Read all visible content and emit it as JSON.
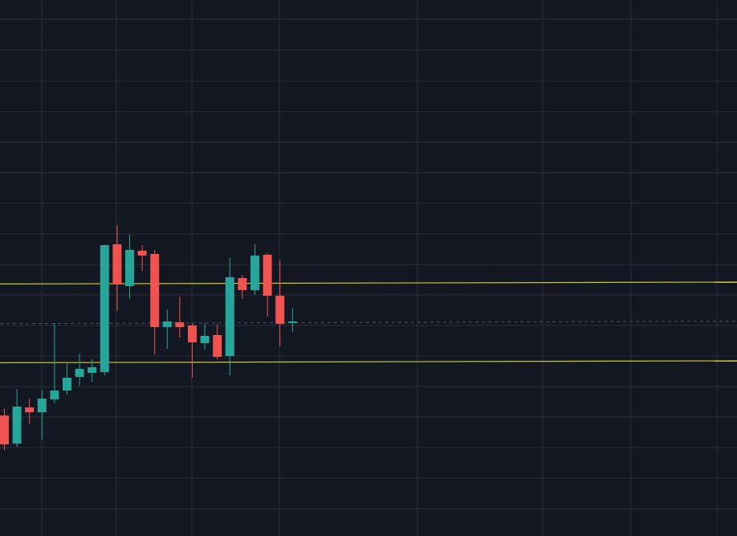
{
  "theme": {
    "background": "#131722",
    "grid": "#2a2e39",
    "up": "#26a69a",
    "down": "#ef5350",
    "level_line": "#c9c63a",
    "last_price_line": "#4a5060"
  },
  "chart_data": {
    "type": "candlestick",
    "title": "",
    "xlabel": "",
    "ylabel": "",
    "ylim": [
      0,
      667
    ],
    "xlim": [
      0,
      60
    ],
    "grid": true,
    "horizontal_levels": [
      {
        "value": 314.8,
        "style": "solid"
      },
      {
        "value": 216.8,
        "style": "solid"
      }
    ],
    "last_price": {
      "value": 265.8,
      "style": "dashed"
    },
    "candles": [
      {
        "i": 0,
        "o": 150,
        "h": 158,
        "l": 107,
        "c": 114
      },
      {
        "i": 1,
        "o": 115,
        "h": 183,
        "l": 111,
        "c": 161
      },
      {
        "i": 2,
        "o": 160,
        "h": 171,
        "l": 140,
        "c": 154
      },
      {
        "i": 3,
        "o": 154,
        "h": 181,
        "l": 120,
        "c": 171
      },
      {
        "i": 4,
        "o": 170,
        "h": 265,
        "l": 165,
        "c": 181
      },
      {
        "i": 5,
        "o": 181,
        "h": 215,
        "l": 176,
        "c": 197
      },
      {
        "i": 6,
        "o": 198,
        "h": 227,
        "l": 187,
        "c": 208
      },
      {
        "i": 7,
        "o": 203,
        "h": 220,
        "l": 192,
        "c": 210
      },
      {
        "i": 8,
        "o": 204,
        "h": 362,
        "l": 200,
        "c": 362
      },
      {
        "i": 9,
        "o": 363,
        "h": 387,
        "l": 280,
        "c": 313
      },
      {
        "i": 10,
        "o": 311,
        "h": 375,
        "l": 295,
        "c": 356
      },
      {
        "i": 11,
        "o": 355,
        "h": 362,
        "l": 330,
        "c": 349
      },
      {
        "i": 12,
        "o": 351,
        "h": 356,
        "l": 226,
        "c": 260
      },
      {
        "i": 13,
        "o": 260,
        "h": 282,
        "l": 233,
        "c": 267
      },
      {
        "i": 14,
        "o": 266,
        "h": 298,
        "l": 247,
        "c": 260
      },
      {
        "i": 15,
        "o": 262,
        "h": 265,
        "l": 197,
        "c": 241
      },
      {
        "i": 16,
        "o": 240,
        "h": 265,
        "l": 232,
        "c": 249
      },
      {
        "i": 17,
        "o": 250,
        "h": 263,
        "l": 220,
        "c": 223
      },
      {
        "i": 18,
        "o": 224,
        "h": 346,
        "l": 200,
        "c": 322
      },
      {
        "i": 19,
        "o": 321,
        "h": 325,
        "l": 295,
        "c": 306
      },
      {
        "i": 20,
        "o": 306,
        "h": 363,
        "l": 300,
        "c": 349
      },
      {
        "i": 21,
        "o": 350,
        "h": 352,
        "l": 273,
        "c": 299
      },
      {
        "i": 22,
        "o": 299,
        "h": 343,
        "l": 236,
        "c": 264
      },
      {
        "i": 23,
        "o": 265,
        "h": 284,
        "l": 254,
        "c": 267
      }
    ]
  }
}
